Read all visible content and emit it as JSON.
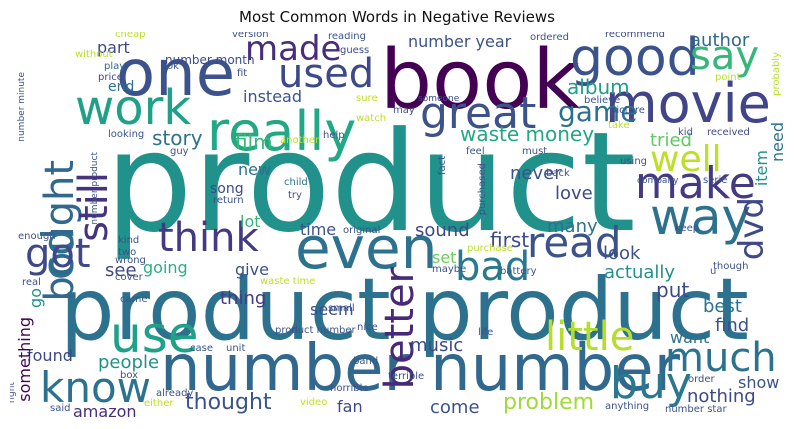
{
  "title": "Most Common Words in Negative Reviews",
  "words": [
    {
      "text": "product",
      "color": "#21918c"
    },
    {
      "text": "book",
      "color": "#440154"
    },
    {
      "text": "product product",
      "color": "#2c728e"
    },
    {
      "text": "number number",
      "color": "#31688e"
    },
    {
      "text": "one",
      "color": "#3b528b"
    },
    {
      "text": "really",
      "color": "#22a884"
    },
    {
      "text": "even",
      "color": "#2c728e"
    },
    {
      "text": "movie",
      "color": "#414487"
    },
    {
      "text": "good",
      "color": "#3b528b"
    },
    {
      "text": "work",
      "color": "#1fa187"
    },
    {
      "text": "great",
      "color": "#3b528b"
    },
    {
      "text": "way",
      "color": "#2c728e"
    },
    {
      "text": "make",
      "color": "#443983"
    },
    {
      "text": "cd",
      "color": "#2c728e"
    },
    {
      "text": "bought",
      "color": "#31688e"
    },
    {
      "text": "used",
      "color": "#3e4989"
    },
    {
      "text": "made",
      "color": "#472d7b"
    },
    {
      "text": "say",
      "color": "#35b779"
    },
    {
      "text": "think",
      "color": "#443983"
    },
    {
      "text": "got",
      "color": "#3e4989"
    },
    {
      "text": "read",
      "color": "#3b528b"
    },
    {
      "text": "bad",
      "color": "#2a788e"
    },
    {
      "text": "use",
      "color": "#1fa187"
    },
    {
      "text": "better",
      "color": "#482878"
    },
    {
      "text": "buy",
      "color": "#2a788e"
    },
    {
      "text": "much",
      "color": "#2c728e"
    },
    {
      "text": "know",
      "color": "#2c728e"
    },
    {
      "text": "little",
      "color": "#b5de2b"
    },
    {
      "text": "well",
      "color": "#bddf26"
    },
    {
      "text": "still",
      "color": "#46337f"
    },
    {
      "text": "dvd",
      "color": "#3e4989"
    },
    {
      "text": "game",
      "color": "#2c728e"
    },
    {
      "text": "album",
      "color": "#1f9e89"
    },
    {
      "text": "waste money",
      "color": "#22a884"
    },
    {
      "text": "number year",
      "color": "#3b528b"
    },
    {
      "text": "author",
      "color": "#31688e"
    },
    {
      "text": "instead",
      "color": "#3b528b"
    },
    {
      "text": "story",
      "color": "#2c728e"
    },
    {
      "text": "film",
      "color": "#38b977"
    },
    {
      "text": "part",
      "color": "#3e4989"
    },
    {
      "text": "end",
      "color": "#2c728e"
    },
    {
      "text": "love",
      "color": "#3e4989"
    },
    {
      "text": "never",
      "color": "#3b528b"
    },
    {
      "text": "tried",
      "color": "#5ec962"
    },
    {
      "text": "item",
      "color": "#21918c"
    },
    {
      "text": "need",
      "color": "#2c728e"
    },
    {
      "text": "song",
      "color": "#3e4989"
    },
    {
      "text": "new",
      "color": "#2c728e"
    },
    {
      "text": "lot",
      "color": "#35b779"
    },
    {
      "text": "time",
      "color": "#3b528b"
    },
    {
      "text": "sound",
      "color": "#3e4989"
    },
    {
      "text": "first",
      "color": "#3e4989"
    },
    {
      "text": "set",
      "color": "#6ccd5a"
    },
    {
      "text": "look",
      "color": "#3b528b"
    },
    {
      "text": "many",
      "color": "#2c728e"
    },
    {
      "text": "actually",
      "color": "#21918c"
    },
    {
      "text": "see",
      "color": "#3e4989"
    },
    {
      "text": "going",
      "color": "#2ab07f"
    },
    {
      "text": "give",
      "color": "#3b528b"
    },
    {
      "text": "go",
      "color": "#21918c"
    },
    {
      "text": "put",
      "color": "#3e4989"
    },
    {
      "text": "best",
      "color": "#2c728e"
    },
    {
      "text": "thing",
      "color": "#443983"
    },
    {
      "text": "seem",
      "color": "#3b528b"
    },
    {
      "text": "find",
      "color": "#3b528b"
    },
    {
      "text": "want",
      "color": "#2c728e"
    },
    {
      "text": "music",
      "color": "#3e4989"
    },
    {
      "text": "found",
      "color": "#3e4989"
    },
    {
      "text": "people",
      "color": "#21918c"
    },
    {
      "text": "something",
      "color": "#440154"
    },
    {
      "text": "thought",
      "color": "#3b528b"
    },
    {
      "text": "amazon",
      "color": "#472d7b"
    },
    {
      "text": "fan",
      "color": "#3e4989"
    },
    {
      "text": "come",
      "color": "#3b528b"
    },
    {
      "text": "problem",
      "color": "#a0da39"
    },
    {
      "text": "nothing",
      "color": "#3e4989"
    },
    {
      "text": "show",
      "color": "#3b528b"
    },
    {
      "text": "number month",
      "color": "#3e4989"
    },
    {
      "text": "reading",
      "color": "#3b528b"
    },
    {
      "text": "guess",
      "color": "#3e4989"
    },
    {
      "text": "ordered",
      "color": "#3b528b"
    },
    {
      "text": "recommend",
      "color": "#3e4989"
    },
    {
      "text": "version",
      "color": "#3b528b"
    },
    {
      "text": "without",
      "color": "#bddf26"
    },
    {
      "text": "cheap",
      "color": "#bddf26"
    },
    {
      "text": "play",
      "color": "#31688e"
    },
    {
      "text": "price",
      "color": "#3e4989"
    },
    {
      "text": "ok",
      "color": "#3b528b"
    },
    {
      "text": "fit",
      "color": "#3e4989"
    },
    {
      "text": "probably",
      "color": "#bddf26"
    },
    {
      "text": "point",
      "color": "#bddf26"
    },
    {
      "text": "number minute",
      "color": "#3b528b"
    },
    {
      "text": "sure",
      "color": "#bddf26"
    },
    {
      "text": "someone",
      "color": "#3e4989"
    },
    {
      "text": "believe",
      "color": "#3b528b"
    },
    {
      "text": "picture",
      "color": "#3b528b"
    },
    {
      "text": "take",
      "color": "#bddf26"
    },
    {
      "text": "may",
      "color": "#3b528b"
    },
    {
      "text": "looking",
      "color": "#3b528b"
    },
    {
      "text": "another",
      "color": "#bddf26"
    },
    {
      "text": "help",
      "color": "#3b528b"
    },
    {
      "text": "watch",
      "color": "#bddf26"
    },
    {
      "text": "kid",
      "color": "#3b528b"
    },
    {
      "text": "received",
      "color": "#3e4989"
    },
    {
      "text": "guy",
      "color": "#3b528b"
    },
    {
      "text": "feel",
      "color": "#3b528b"
    },
    {
      "text": "must",
      "color": "#3b528b"
    },
    {
      "text": "back",
      "color": "#3b528b"
    },
    {
      "text": "using",
      "color": "#3b528b"
    },
    {
      "text": "company",
      "color": "#3b528b"
    },
    {
      "text": "serie",
      "color": "#3b528b"
    },
    {
      "text": "number product",
      "color": "#3b528b"
    },
    {
      "text": "child",
      "color": "#2c728e"
    },
    {
      "text": "fact",
      "color": "#3b528b"
    },
    {
      "text": "purchased",
      "color": "#3b528b"
    },
    {
      "text": "return",
      "color": "#3b528b"
    },
    {
      "text": "try",
      "color": "#3b528b"
    },
    {
      "text": "original",
      "color": "#3b528b"
    },
    {
      "text": "purchase",
      "color": "#bddf26"
    },
    {
      "text": "keep",
      "color": "#3b528b"
    },
    {
      "text": "enough",
      "color": "#3b528b"
    },
    {
      "text": "kind",
      "color": "#3b528b"
    },
    {
      "text": "two",
      "color": "#3b528b"
    },
    {
      "text": "wrong",
      "color": "#3b528b"
    },
    {
      "text": "maybe",
      "color": "#3b528b"
    },
    {
      "text": "battery",
      "color": "#3b528b"
    },
    {
      "text": "though",
      "color": "#3b528b"
    },
    {
      "text": "real",
      "color": "#3b528b"
    },
    {
      "text": "cover",
      "color": "#3b528b"
    },
    {
      "text": "waste time",
      "color": "#bddf26"
    },
    {
      "text": "came",
      "color": "#3b528b"
    },
    {
      "text": "small",
      "color": "#3b528b"
    },
    {
      "text": "nice",
      "color": "#3b528b"
    },
    {
      "text": "product number",
      "color": "#3b528b"
    },
    {
      "text": "life",
      "color": "#3b528b"
    },
    {
      "text": "case",
      "color": "#3b528b"
    },
    {
      "text": "unit",
      "color": "#3b528b"
    },
    {
      "text": "band",
      "color": "#3b528b"
    },
    {
      "text": "box",
      "color": "#3b528b"
    },
    {
      "text": "already",
      "color": "#3b528b"
    },
    {
      "text": "horrible",
      "color": "#3b528b"
    },
    {
      "text": "terrible",
      "color": "#3b528b"
    },
    {
      "text": "order",
      "color": "#3b528b"
    },
    {
      "text": "right",
      "color": "#3b528b"
    },
    {
      "text": "said",
      "color": "#3b528b"
    },
    {
      "text": "either",
      "color": "#bddf26"
    },
    {
      "text": "video",
      "color": "#bddf26"
    },
    {
      "text": "anything",
      "color": "#3b528b"
    },
    {
      "text": "number star",
      "color": "#3b528b"
    },
    {
      "text": "u",
      "color": "#3b528b"
    }
  ]
}
